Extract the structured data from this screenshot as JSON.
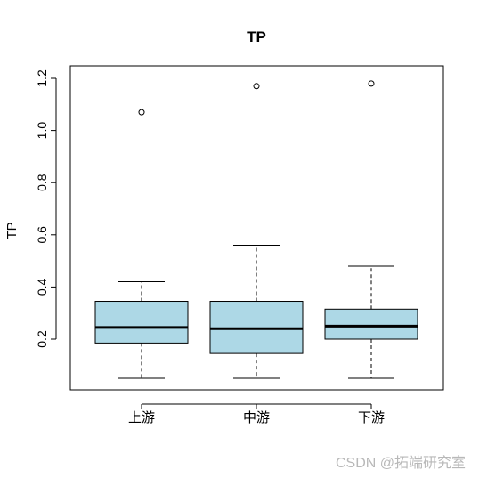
{
  "chart_data": {
    "type": "boxplot",
    "title": "TP",
    "xlabel": "",
    "ylabel": "TP",
    "ylim": [
      0.0,
      1.22
    ],
    "yticks": [
      0.2,
      0.4,
      0.6,
      0.8,
      1.0,
      1.2
    ],
    "ytick_labels": [
      "0.2",
      "0.4",
      "0.6",
      "0.8",
      "1.0",
      "1.2"
    ],
    "categories": [
      "上游",
      "中游",
      "下游"
    ],
    "box_color": "#add8e6",
    "boxes": [
      {
        "category": "上游",
        "whisker_low": 0.05,
        "q1": 0.185,
        "median": 0.245,
        "q3": 0.345,
        "whisker_high": 0.42,
        "outliers": [
          1.07
        ]
      },
      {
        "category": "中游",
        "whisker_low": 0.05,
        "q1": 0.145,
        "median": 0.24,
        "q3": 0.345,
        "whisker_high": 0.56,
        "outliers": [
          1.17
        ]
      },
      {
        "category": "下游",
        "whisker_low": 0.05,
        "q1": 0.2,
        "median": 0.25,
        "q3": 0.315,
        "whisker_high": 0.48,
        "outliers": [
          1.18
        ]
      }
    ]
  },
  "watermark": "CSDN @拓端研究室"
}
